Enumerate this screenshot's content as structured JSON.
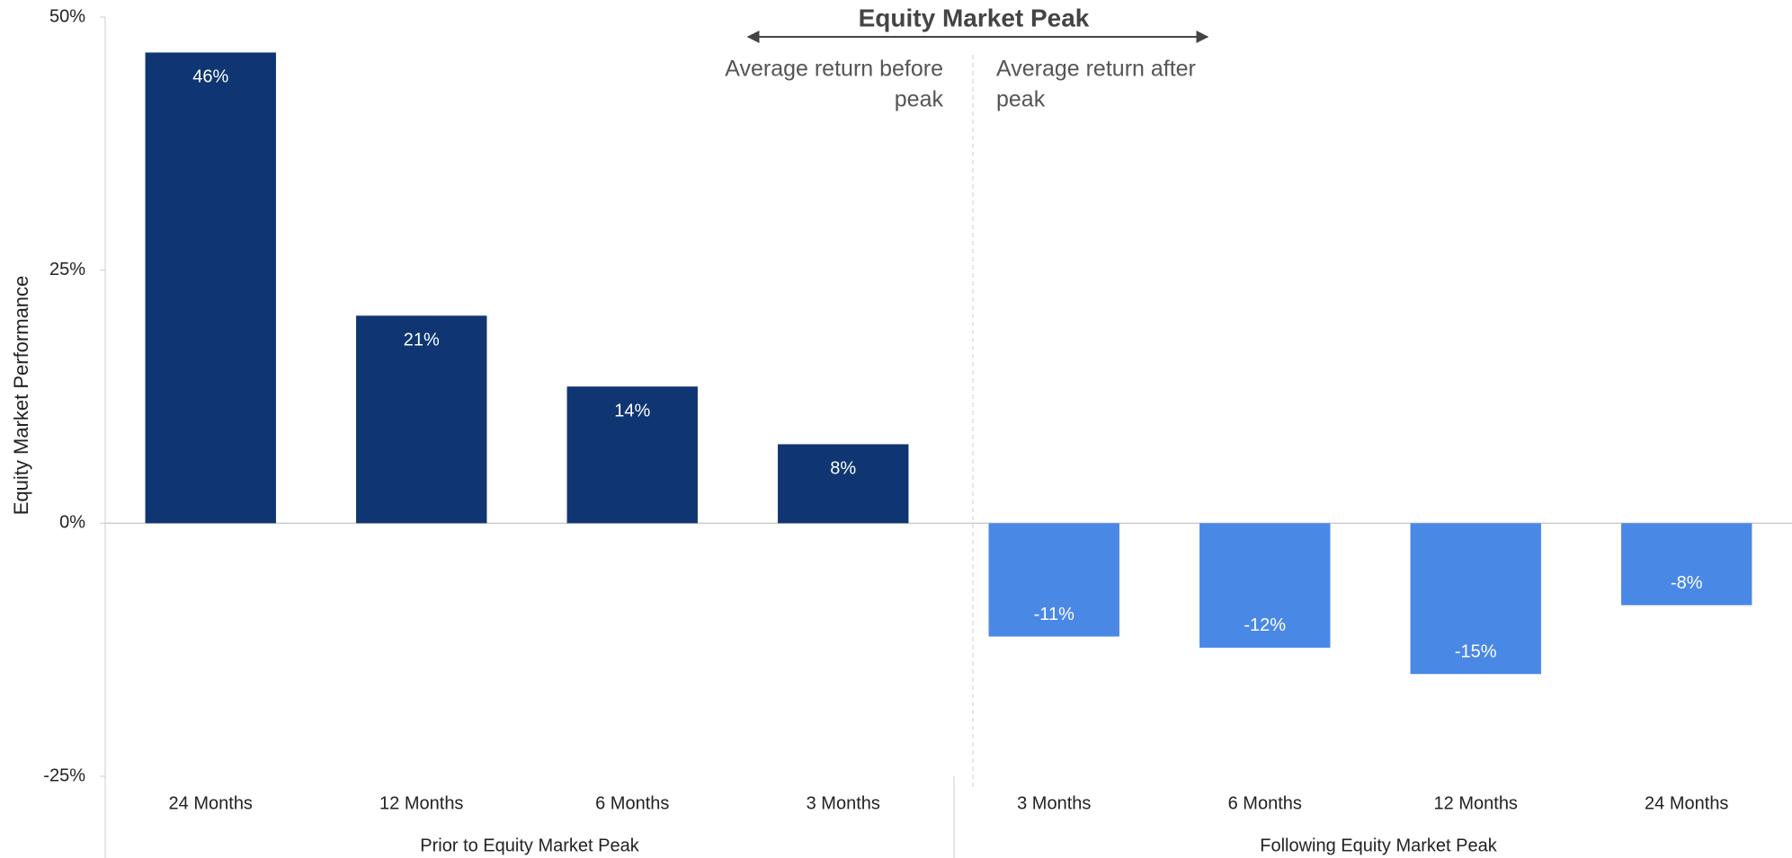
{
  "chart_data": {
    "type": "bar",
    "title": "Equity Market Peak",
    "y_label": "Equity Market Performance",
    "annotations": {
      "before": [
        "Average return before",
        "peak"
      ],
      "after": [
        "Average return after",
        "peak"
      ]
    },
    "categories": [
      "24 Months",
      "12 Months",
      "6 Months",
      "3 Months",
      "3 Months",
      "6 Months",
      "12 Months",
      "24 Months"
    ],
    "values": [
      46.5,
      20.5,
      13.5,
      7.8,
      -11.2,
      -12.3,
      -14.9,
      -8.1
    ],
    "value_labels": [
      "46%",
      "21%",
      "14%",
      "8%",
      "-11%",
      "-12%",
      "-15%",
      "-8%"
    ],
    "colors": [
      "#0f3672",
      "#0f3672",
      "#0f3672",
      "#0f3672",
      "#4a88e6",
      "#4a88e6",
      "#4a88e6",
      "#4a88e6"
    ],
    "groups": [
      "Prior to Equity Market Peak",
      "Following Equity Market Peak"
    ],
    "ylim": [
      -25,
      50
    ],
    "yticks": [
      {
        "value": -25,
        "label": "-25%"
      },
      {
        "value": 0,
        "label": "0%"
      },
      {
        "value": 25,
        "label": "25%"
      },
      {
        "value": 50,
        "label": "50%"
      }
    ]
  }
}
